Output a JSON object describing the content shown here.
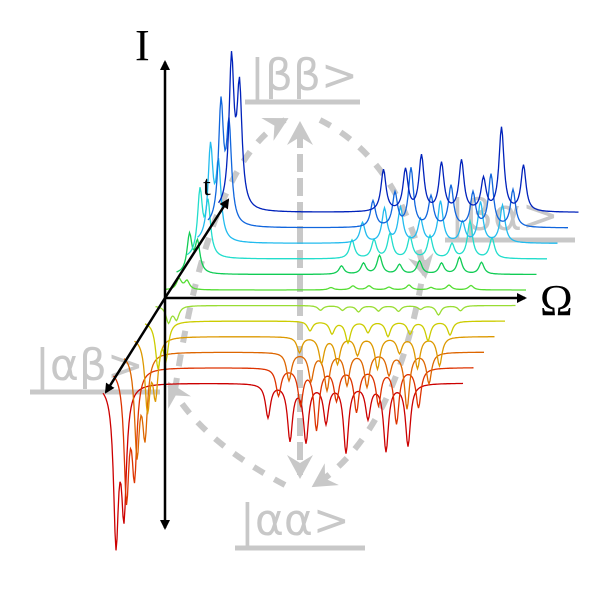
{
  "axes": {
    "intensity": "I",
    "frequency": "Ω",
    "time": "t"
  },
  "states": {
    "beta_beta": "|ββ>",
    "alpha_beta": "|αβ>",
    "alpha_alpha": "|αα>",
    "beta_alpha": "|βα>"
  }
}
